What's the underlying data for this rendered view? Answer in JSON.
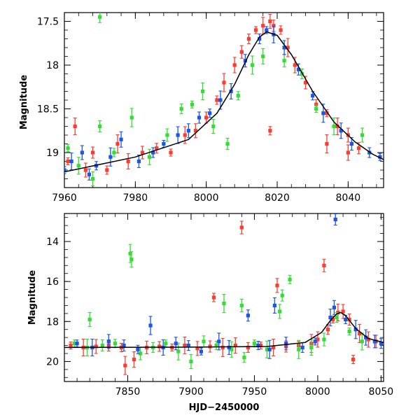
{
  "chart_data": [
    {
      "type": "scatter",
      "panel": "top",
      "title": "",
      "xlabel": "",
      "ylabel": "Magnitude",
      "xlim": [
        7960,
        8050
      ],
      "ylim": [
        19.4,
        17.4
      ],
      "y_inverted": true,
      "xticks": [
        7960,
        7980,
        8000,
        8020,
        8040
      ],
      "yticks": [
        17.5,
        18,
        18.5,
        19
      ],
      "grid": false,
      "colors": {
        "red": "#ff3b30",
        "green": "#33dd33",
        "blue": "#1a56e8",
        "model": "#000000"
      },
      "model_curve": {
        "x": [
          7960,
          7980,
          7995,
          8003,
          8008,
          8012,
          8015,
          8017,
          8020,
          8024,
          8030,
          8036,
          8042,
          8047,
          8050
        ],
        "y": [
          19.22,
          19.05,
          18.85,
          18.55,
          18.22,
          17.88,
          17.68,
          17.62,
          17.66,
          17.88,
          18.3,
          18.65,
          18.88,
          19.02,
          19.08
        ]
      },
      "series": [
        {
          "color": "red",
          "x": [
            7961,
            7963,
            7966,
            7968,
            7972,
            7975,
            7978,
            7982,
            7986,
            7990,
            7994,
            7997,
            8000,
            8003,
            8005,
            8008,
            8010,
            8012,
            8014,
            8016,
            8018,
            8019,
            8021,
            8023,
            8025,
            8028,
            8031,
            8034,
            8037,
            8040,
            8043,
            8018,
            8034,
            8040
          ],
          "y": [
            19.1,
            18.7,
            19.2,
            19.0,
            19.2,
            18.9,
            19.1,
            19.0,
            18.95,
            19.0,
            18.8,
            18.75,
            18.6,
            18.4,
            18.2,
            18.0,
            17.85,
            17.7,
            17.6,
            17.55,
            17.5,
            17.55,
            17.6,
            17.8,
            18.0,
            18.2,
            18.45,
            18.55,
            18.7,
            18.8,
            18.95,
            18.75,
            18.9,
            19.0
          ]
        },
        {
          "color": "green",
          "x": [
            7961,
            7964,
            7968,
            7970,
            7974,
            7979,
            7984,
            7989,
            7993,
            7996,
            7999,
            8002,
            8006,
            8009,
            8013,
            8016,
            8022,
            8027,
            8031,
            8036,
            8044,
            7970
          ],
          "y": [
            18.95,
            19.15,
            19.3,
            18.7,
            19.0,
            18.6,
            19.05,
            18.8,
            18.5,
            18.45,
            18.3,
            18.7,
            18.9,
            18.35,
            18.0,
            17.9,
            17.95,
            18.1,
            18.5,
            18.7,
            18.8,
            17.45
          ]
        },
        {
          "color": "blue",
          "x": [
            7960,
            7962,
            7965,
            7967,
            7969,
            7973,
            7976,
            7981,
            7985,
            7988,
            7992,
            7995,
            7998,
            8001,
            8004,
            8007,
            8011,
            8015,
            8017,
            8019,
            8022,
            8026,
            8030,
            8033,
            8038,
            8041,
            8046,
            8049
          ],
          "y": [
            19.2,
            19.1,
            19.0,
            19.25,
            19.15,
            19.05,
            18.85,
            19.1,
            19.0,
            18.9,
            18.8,
            18.75,
            18.6,
            18.55,
            18.4,
            18.3,
            17.95,
            17.7,
            17.6,
            17.65,
            17.8,
            18.05,
            18.35,
            18.55,
            18.75,
            18.9,
            19.0,
            19.05
          ]
        }
      ]
    },
    {
      "type": "scatter",
      "panel": "bottom",
      "title": "",
      "xlabel": "HJD−2450000",
      "ylabel": "Magnitude",
      "xlim": [
        7800,
        8052
      ],
      "ylim": [
        21,
        12.6
      ],
      "y_inverted": true,
      "xticks": [
        7850,
        7900,
        7950,
        8000,
        8050
      ],
      "yticks": [
        14,
        16,
        18,
        20
      ],
      "grid": false,
      "model_curve": {
        "x": [
          7800,
          7900,
          7960,
          7990,
          8003,
          8010,
          8015,
          8018,
          8022,
          8030,
          8040,
          8052
        ],
        "y": [
          19.3,
          19.28,
          19.25,
          19.05,
          18.55,
          17.95,
          17.62,
          17.55,
          17.7,
          18.35,
          18.85,
          19.05
        ]
      },
      "series": [
        {
          "color": "red",
          "x": [
            7805,
            7815,
            7825,
            7835,
            7845,
            7848,
            7855,
            7865,
            7875,
            7885,
            7895,
            7905,
            7915,
            7918,
            7925,
            7935,
            7940,
            7945,
            7955,
            7965,
            7968,
            7975,
            7985,
            7995,
            8000,
            8005,
            8008,
            8012,
            8016,
            8020,
            8025,
            8028,
            8033,
            8040,
            8046
          ],
          "y": [
            19.2,
            19.3,
            19.25,
            19.2,
            19.3,
            20.2,
            19.9,
            19.3,
            19.25,
            19.3,
            19.2,
            19.35,
            19.25,
            16.8,
            19.3,
            19.2,
            13.3,
            19.3,
            19.2,
            19.3,
            16.2,
            19.25,
            19.2,
            19.1,
            18.9,
            15.2,
            18.4,
            17.9,
            17.55,
            17.5,
            17.9,
            19.9,
            18.6,
            18.9,
            19.0
          ]
        },
        {
          "color": "green",
          "x": [
            7808,
            7818,
            7820,
            7830,
            7840,
            7852,
            7853,
            7860,
            7870,
            7880,
            7890,
            7900,
            7910,
            7920,
            7926,
            7932,
            7940,
            7942,
            7950,
            7960,
            7970,
            7972,
            7978,
            7985,
            7995,
            8005,
            8015,
            8025,
            8035
          ],
          "y": [
            19.1,
            19.3,
            17.9,
            19.2,
            19.1,
            14.6,
            14.9,
            19.6,
            19.3,
            19.1,
            19.5,
            20.0,
            19.0,
            19.2,
            17.1,
            19.4,
            17.2,
            19.8,
            19.1,
            19.4,
            17.5,
            16.7,
            15.9,
            19.4,
            19.3,
            18.9,
            17.8,
            18.5,
            19.0
          ]
        },
        {
          "color": "blue",
          "x": [
            7810,
            7822,
            7835,
            7847,
            7858,
            7868,
            7878,
            7888,
            7898,
            7908,
            7922,
            7930,
            7945,
            7953,
            7962,
            7966,
            7975,
            7988,
            7998,
            8010,
            8013,
            8014,
            8022,
            8030,
            8038,
            8045,
            8050
          ],
          "y": [
            19.1,
            19.3,
            19.0,
            19.2,
            19.4,
            18.2,
            19.3,
            19.1,
            19.2,
            19.5,
            19.0,
            19.3,
            17.7,
            19.2,
            19.4,
            17.2,
            19.1,
            19.3,
            19.0,
            17.8,
            17.3,
            12.9,
            17.9,
            18.4,
            18.8,
            19.0,
            19.1
          ]
        }
      ]
    }
  ]
}
